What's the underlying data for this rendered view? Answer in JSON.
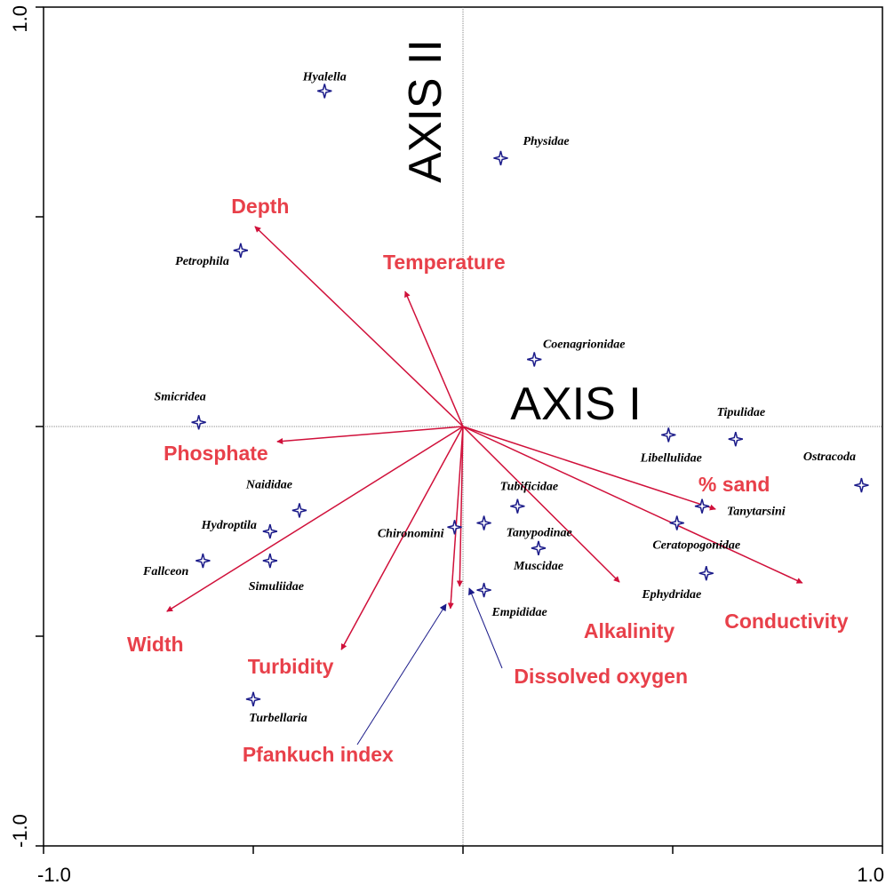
{
  "chart_data": {
    "type": "biplot",
    "x_axis_title": "AXIS I",
    "y_axis_title": "AXIS II",
    "xlim": [
      -1,
      1
    ],
    "ylim": [
      -1,
      1
    ],
    "xticks": [
      {
        "value": -1,
        "label": "-1.0"
      },
      {
        "value": -0.5,
        "label": null
      },
      {
        "value": 0,
        "label": null
      },
      {
        "value": 0.5,
        "label": null
      },
      {
        "value": 1,
        "label": "1.0"
      }
    ],
    "yticks": [
      {
        "value": -1,
        "label": "-1.0"
      },
      {
        "value": -0.5,
        "label": null
      },
      {
        "value": 0,
        "label": null
      },
      {
        "value": 0.5,
        "label": null
      },
      {
        "value": 1,
        "label": "1.0"
      }
    ],
    "zero_lines": true,
    "species": {
      "color": "#1c1c8a",
      "labels": [
        "Hyalella",
        "Physidae",
        "Petrophila",
        "Coenagrionidae",
        "Smicridea",
        "Tipulidae",
        "Libellulidae",
        "Ostracoda",
        "Naididae",
        "Tanytarsini",
        "Tubificidae",
        "Hydroptila",
        "Chironomini",
        "Tanypodinae",
        "Ceratopogonidae",
        "Muscidae",
        "Fallceon",
        "Simuliidae",
        "Ephydridae",
        "Empididae",
        "Turbellaria"
      ],
      "x": [
        -0.33,
        0.09,
        -0.53,
        0.17,
        -0.63,
        0.65,
        0.49,
        0.95,
        -0.39,
        0.57,
        0.13,
        -0.46,
        -0.02,
        0.05,
        0.51,
        0.18,
        -0.62,
        -0.46,
        0.58,
        0.05,
        -0.5
      ],
      "y": [
        0.8,
        0.64,
        0.42,
        0.16,
        0.01,
        -0.03,
        -0.02,
        -0.14,
        -0.2,
        -0.19,
        -0.19,
        -0.25,
        -0.24,
        -0.23,
        -0.23,
        -0.29,
        -0.32,
        -0.32,
        -0.35,
        -0.39,
        -0.65
      ]
    },
    "vectors": {
      "color": "#d0103a",
      "label_color": "#e8404a",
      "labels": [
        "Depth",
        "Temperature",
        "Phosphate",
        "Width",
        "Turbidity",
        "Pfankuch index",
        "Dissolved oxygen",
        "Alkalinity",
        "% sand",
        "Conductivity"
      ],
      "x": [
        -0.496,
        -0.138,
        -0.443,
        -0.706,
        -0.29,
        -0.03,
        -0.008,
        0.373,
        0.602,
        0.809
      ],
      "y": [
        0.477,
        0.322,
        -0.036,
        -0.441,
        -0.532,
        -0.434,
        -0.381,
        -0.371,
        -0.197,
        -0.373
      ]
    }
  }
}
